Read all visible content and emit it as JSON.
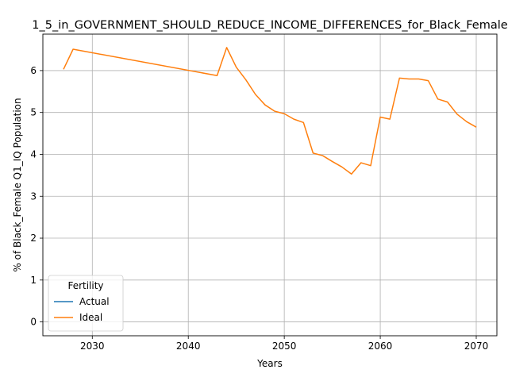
{
  "chart_data": {
    "type": "line",
    "title": "1_5_in_GOVERNMENT_SHOULD_REDUCE_INCOME_DIFFERENCES_for_Black_Female",
    "xlabel": "Years",
    "ylabel": "% of Black_Female Q1_IQ Population",
    "xlim": [
      2024.85,
      2072.15
    ],
    "ylim": [
      -0.33,
      6.87
    ],
    "xticks": [
      2030,
      2040,
      2050,
      2060,
      2070
    ],
    "yticks": [
      0,
      1,
      2,
      3,
      4,
      5,
      6
    ],
    "grid": true,
    "legend": {
      "title": "Fertility",
      "placement": "lower-left",
      "entries": [
        "Actual",
        "Ideal"
      ]
    },
    "series": [
      {
        "name": "Actual",
        "color": "#1f77b4",
        "x": [],
        "y": []
      },
      {
        "name": "Ideal",
        "color": "#ff7f0e",
        "x": [
          2027,
          2028,
          2043,
          2044,
          2045,
          2046,
          2047,
          2048,
          2049,
          2050,
          2051,
          2052,
          2053,
          2054,
          2055,
          2056,
          2057,
          2058,
          2059,
          2060,
          2061,
          2062,
          2063,
          2064,
          2065,
          2066,
          2067,
          2068,
          2069,
          2070
        ],
        "y": [
          6.03,
          6.51,
          5.88,
          6.55,
          6.08,
          5.78,
          5.43,
          5.18,
          5.03,
          4.97,
          4.84,
          4.76,
          4.03,
          3.97,
          3.83,
          3.7,
          3.53,
          3.8,
          3.73,
          4.89,
          4.84,
          5.82,
          5.8,
          5.8,
          5.76,
          5.32,
          5.25,
          4.96,
          4.78,
          4.65
        ]
      }
    ]
  }
}
